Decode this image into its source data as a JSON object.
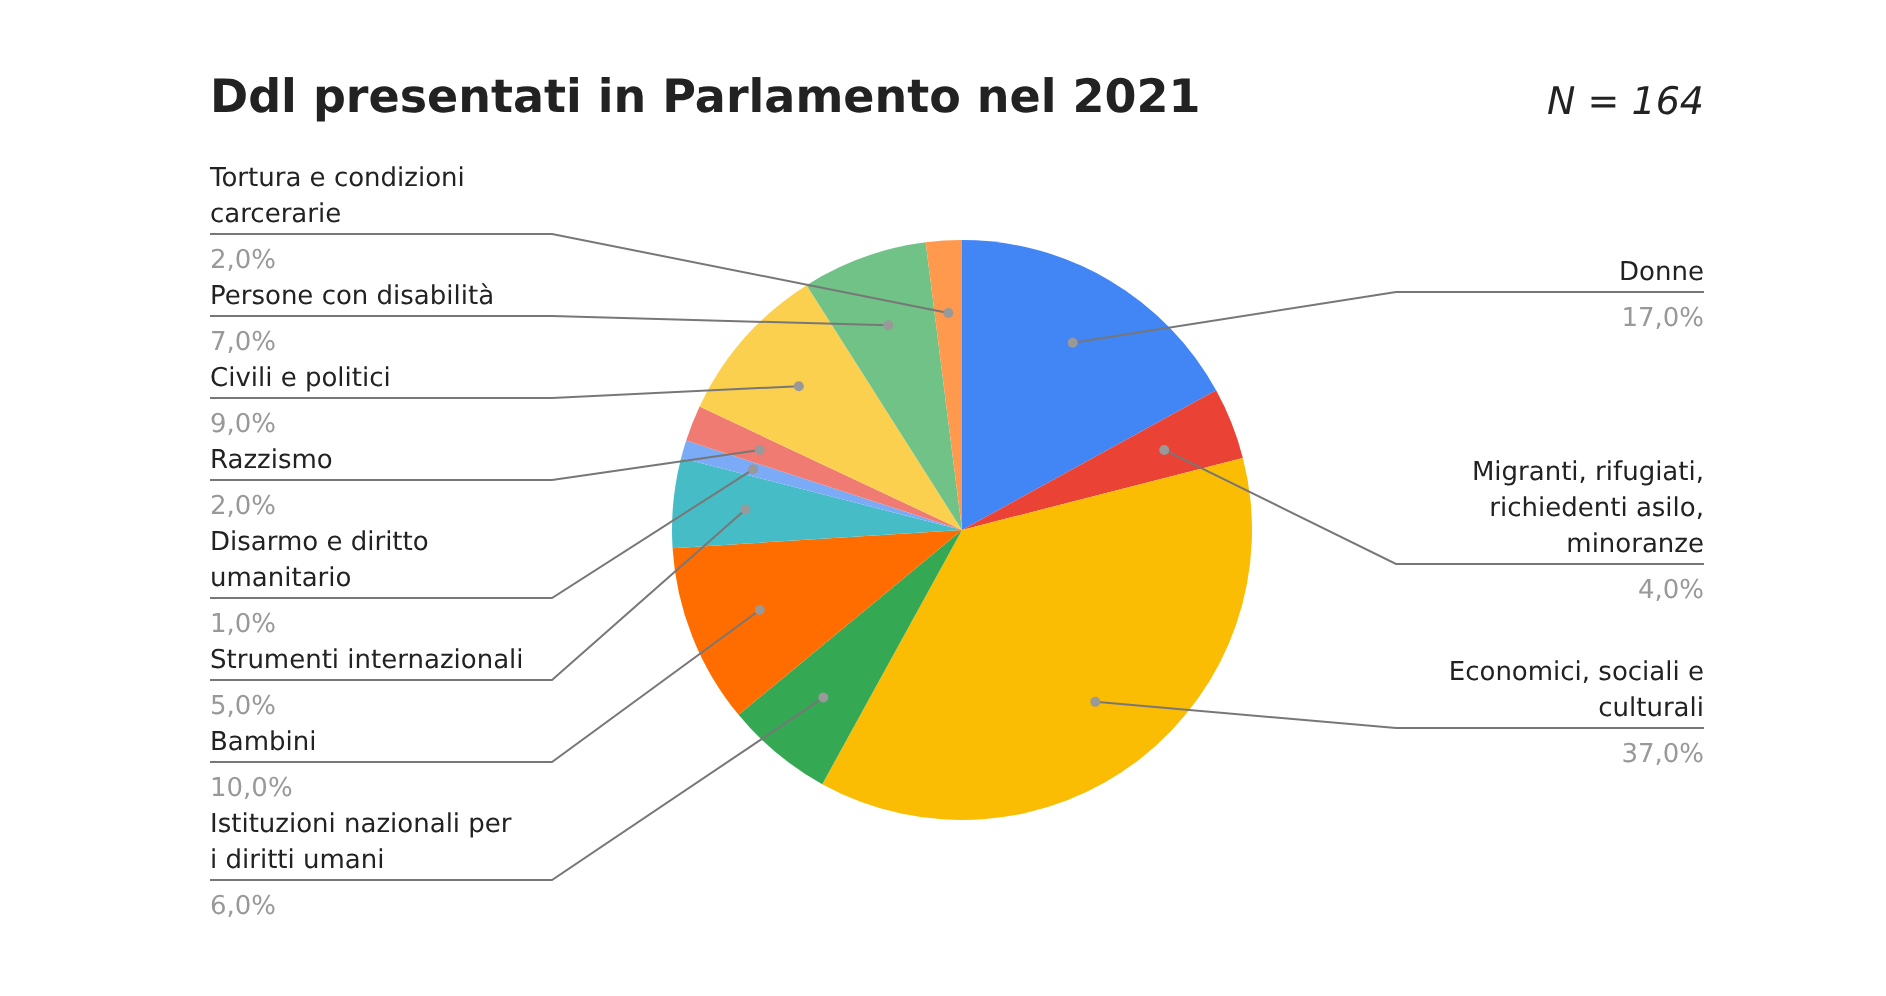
{
  "chart_data": {
    "type": "pie",
    "title": "Ddl presentati in Parlamento nel 2021",
    "subtitle": "N = 164",
    "categories": [
      "Donne",
      "Migranti, rifugiati, richiedenti asilo, minoranze",
      "Economici, sociali e culturali",
      "Istituzioni nazionali per i diritti umani",
      "Bambini",
      "Strumenti internazionali",
      "Disarmo e diritto umanitario",
      "Razzismo",
      "Civili e politici",
      "Persone con disabilità",
      "Tortura e condizioni carcerarie"
    ],
    "values": [
      17,
      4,
      37,
      6,
      10,
      5,
      1,
      2,
      9,
      7,
      2
    ],
    "value_labels": [
      "17,0%",
      "4,0%",
      "37,0%",
      "6,0%",
      "10,0%",
      "5,0%",
      "1,0%",
      "2,0%",
      "9,0%",
      "7,0%",
      "2,0%"
    ],
    "colors": [
      "#4285f4",
      "#ea4335",
      "#fbbc04",
      "#34a853",
      "#ff6d01",
      "#46bdc6",
      "#7baaf7",
      "#f07b72",
      "#fcd04f",
      "#71c287",
      "#ff994d"
    ],
    "legend": false
  }
}
